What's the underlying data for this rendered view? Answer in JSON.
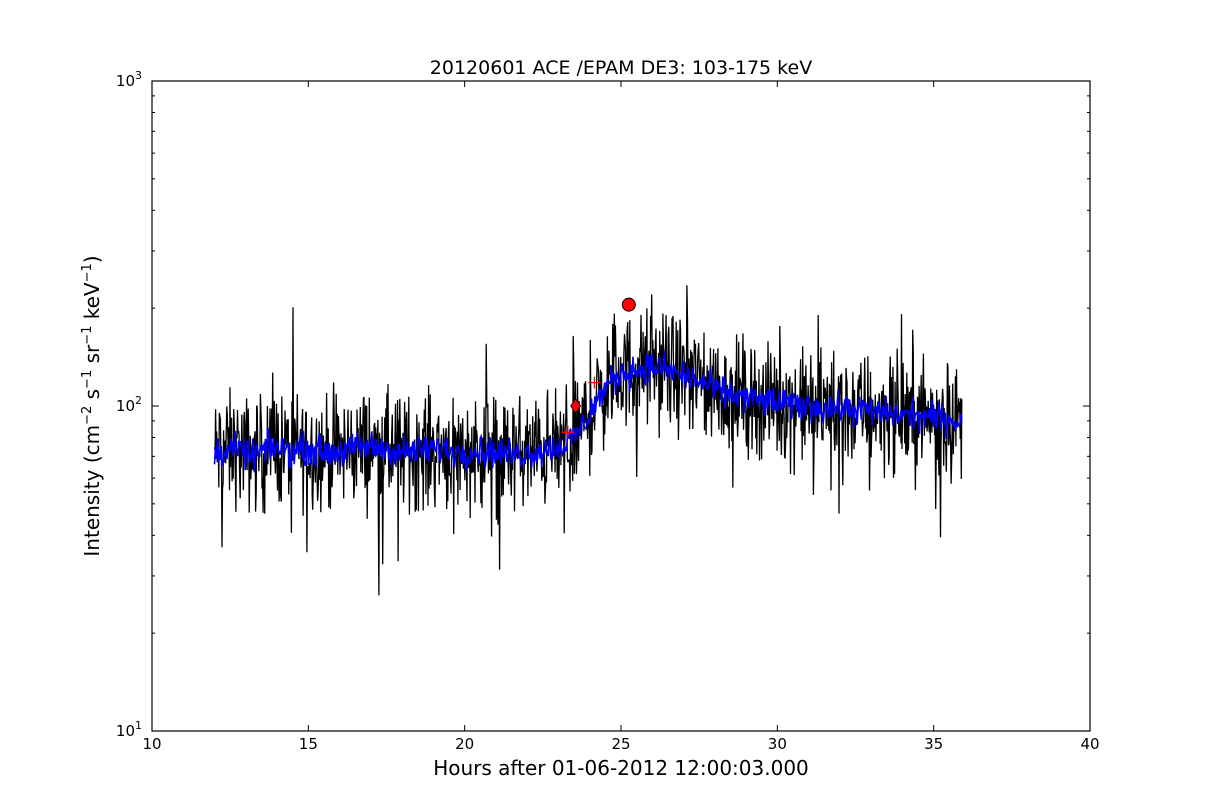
{
  "chart_data": {
    "type": "line",
    "title": "20120601 ACE /EPAM DE3: 103-175 keV",
    "xlabel": "Hours after 01-06-2012 12:00:03.000",
    "ylabel": {
      "base": "Intensity (cm",
      "sup1": "−2",
      "mid1": " s",
      "sup2": "−1",
      "mid2": " sr",
      "sup3": "−1",
      "mid3": " keV",
      "sup4": "−1",
      "end": ")"
    },
    "xlim": [
      10,
      40
    ],
    "ylim": [
      10,
      1000
    ],
    "yscale": "log",
    "xticks": [
      10,
      15,
      20,
      25,
      30,
      35,
      40
    ],
    "xtick_labels": [
      "10",
      "15",
      "20",
      "25",
      "30",
      "35",
      "40"
    ],
    "yticks": [
      10,
      100,
      1000
    ],
    "ytick_labels": [
      {
        "base": "10",
        "exp": "1"
      },
      {
        "base": "10",
        "exp": "2"
      },
      {
        "base": "10",
        "exp": "3"
      }
    ],
    "grid": false,
    "series": [
      {
        "color": "#000000",
        "style": "line",
        "description": "raw intensity",
        "x": [
          12.0,
          12.6,
          13.2,
          13.8,
          14.4,
          15.0,
          15.6,
          16.2,
          16.8,
          17.4,
          18.0,
          18.6,
          19.2,
          19.8,
          20.4,
          21.0,
          21.6,
          22.2,
          22.8,
          23.2,
          23.6,
          24.0,
          24.4,
          24.8,
          25.2,
          25.6,
          26.0,
          26.4,
          26.8,
          27.2,
          27.6,
          28.0,
          28.6,
          29.2,
          29.8,
          30.4,
          31.0,
          31.6,
          32.2,
          32.8,
          33.4,
          34.0,
          34.6,
          35.2,
          35.9
        ],
        "values": [
          72,
          74,
          70,
          75,
          73,
          74,
          72,
          73,
          75,
          74,
          72,
          73,
          74,
          72,
          73,
          72,
          71,
          72,
          74,
          76,
          82,
          95,
          110,
          122,
          128,
          130,
          132,
          130,
          126,
          122,
          118,
          112,
          108,
          105,
          103,
          101,
          100,
          99,
          98,
          97,
          95,
          94,
          93,
          92,
          90
        ]
      },
      {
        "color": "#0000ff",
        "style": "line",
        "description": "smoothed intensity",
        "x": [
          12.0,
          12.6,
          13.2,
          13.8,
          14.4,
          15.0,
          15.6,
          16.2,
          16.8,
          17.4,
          18.0,
          18.6,
          19.2,
          19.8,
          20.4,
          21.0,
          21.6,
          22.2,
          22.8,
          23.2,
          23.6,
          24.0,
          24.4,
          24.8,
          25.2,
          25.6,
          26.0,
          26.4,
          26.8,
          27.2,
          27.6,
          28.0,
          28.6,
          29.2,
          29.8,
          30.4,
          31.0,
          31.6,
          32.2,
          32.8,
          33.4,
          34.0,
          34.6,
          35.2,
          35.9
        ],
        "values": [
          72,
          74,
          70,
          75,
          73,
          74,
          72,
          73,
          75,
          74,
          72,
          73,
          74,
          72,
          73,
          72,
          71,
          72,
          74,
          76,
          82,
          95,
          110,
          122,
          128,
          130,
          132,
          130,
          126,
          122,
          118,
          112,
          108,
          105,
          103,
          101,
          100,
          99,
          98,
          97,
          95,
          94,
          93,
          92,
          90
        ]
      }
    ],
    "markers": [
      {
        "shape": "circle",
        "color": "#ff0000",
        "x": 25.25,
        "y": 205
      },
      {
        "shape": "diamond",
        "color": "#ff0000",
        "x": 23.55,
        "y": 100
      },
      {
        "shape": "plus",
        "color": "#ff0000",
        "x": 24.15,
        "y": 118
      },
      {
        "shape": "plus",
        "color": "#ff0000",
        "x": 23.3,
        "y": 83
      }
    ]
  }
}
